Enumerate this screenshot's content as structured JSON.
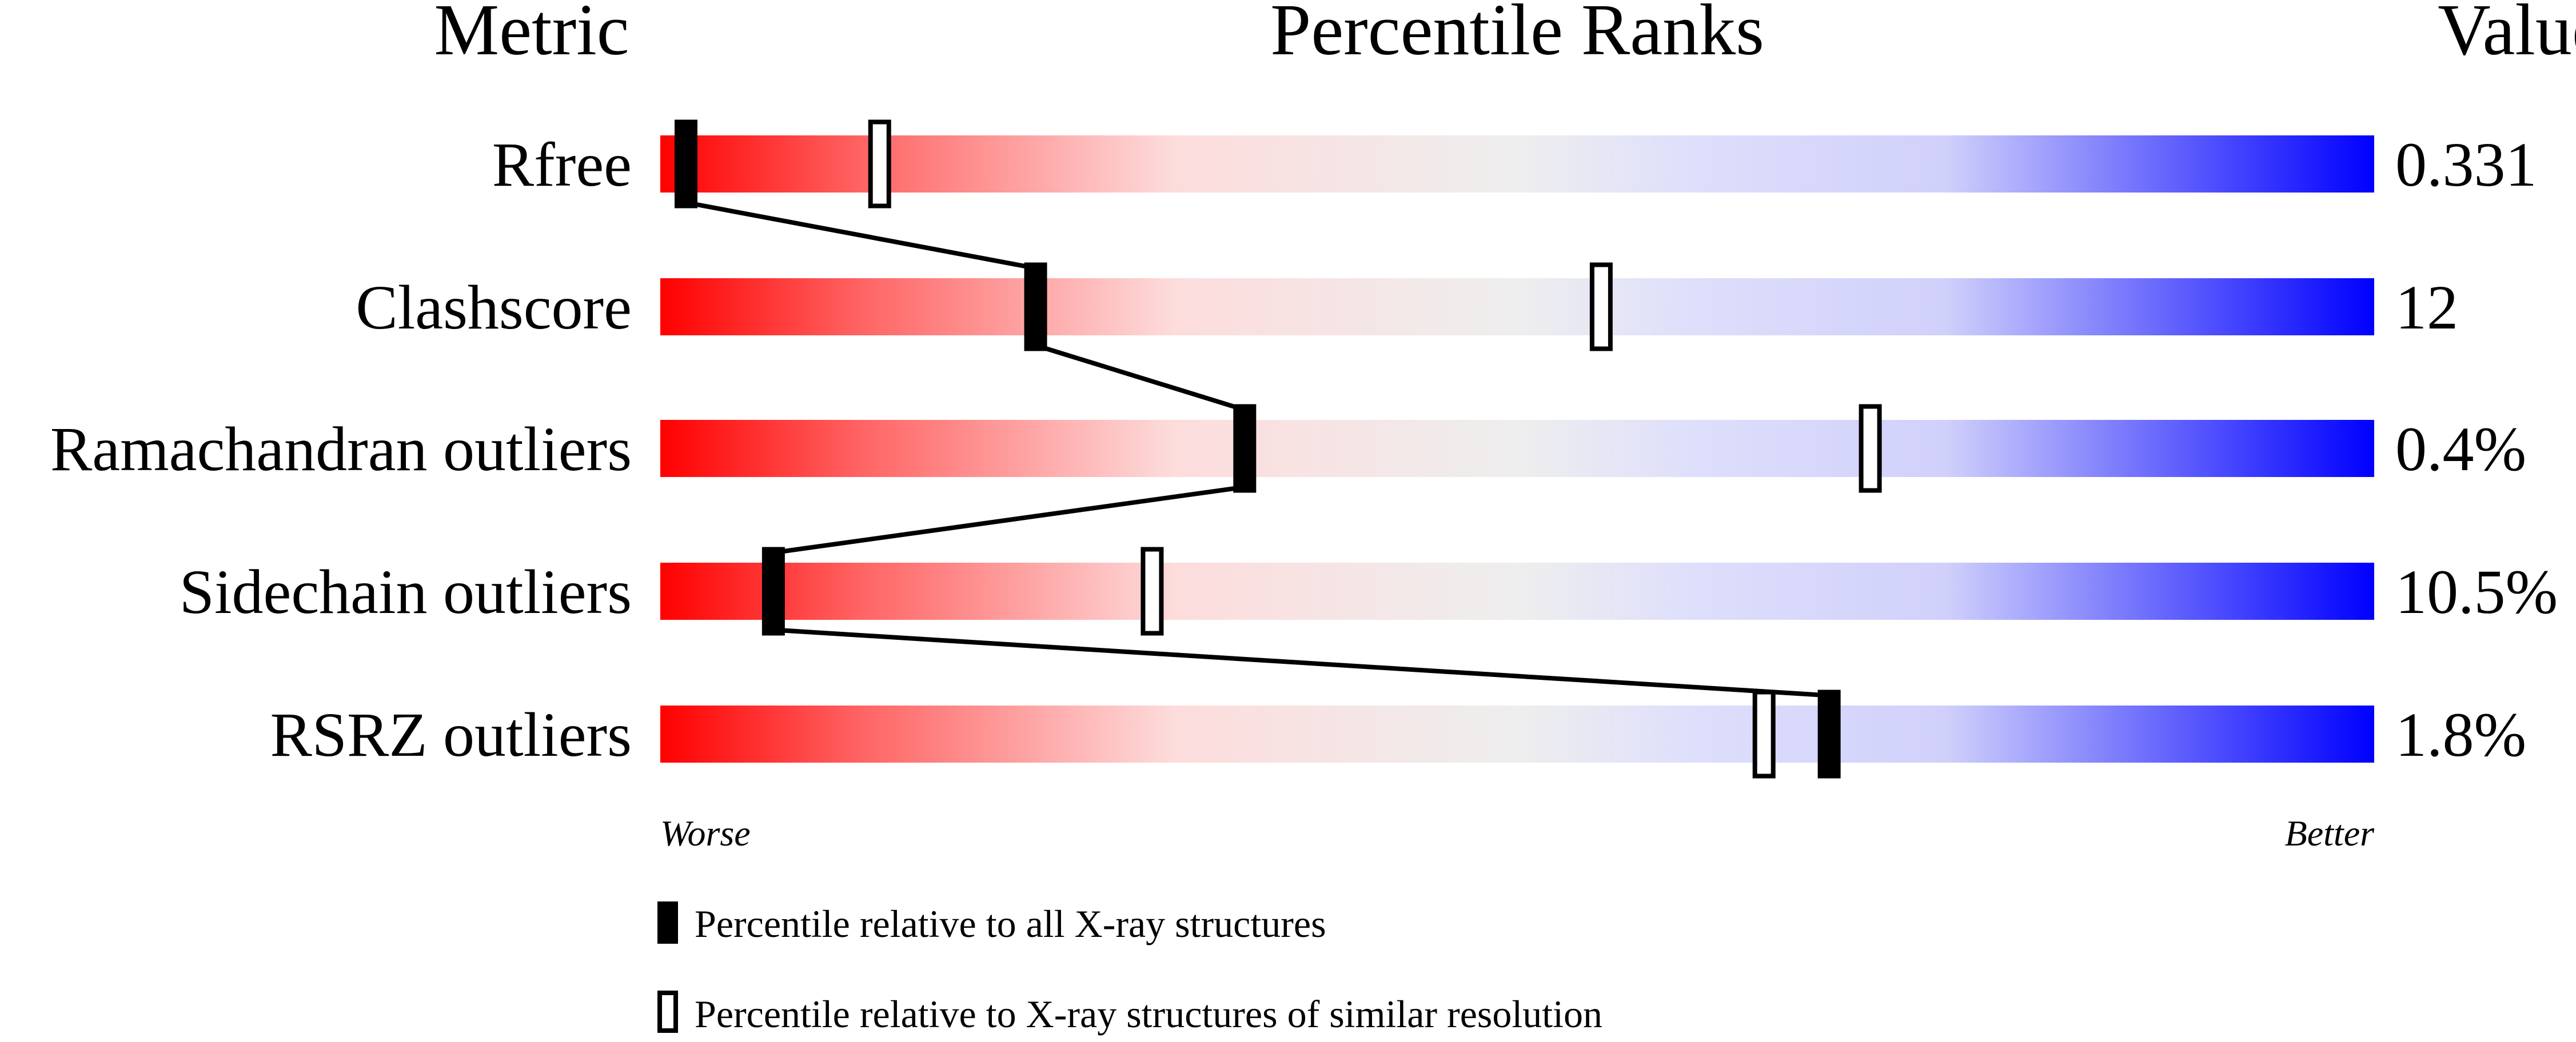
{
  "chart_data": {
    "type": "bar",
    "headers": {
      "metric": "Metric",
      "ranks": "Percentile Ranks",
      "value": "Value"
    },
    "metrics": [
      {
        "label": "Rfree",
        "value": "0.331",
        "percentile_all": 1.5,
        "percentile_similar": 12.8
      },
      {
        "label": "Clashscore",
        "value": "12",
        "percentile_all": 21.9,
        "percentile_similar": 54.9
      },
      {
        "label": "Ramachandran outliers",
        "value": "0.4%",
        "percentile_all": 34.1,
        "percentile_similar": 70.6
      },
      {
        "label": "Sidechain outliers",
        "value": "10.5%",
        "percentile_all": 6.6,
        "percentile_similar": 28.7
      },
      {
        "label": "RSRZ outliers",
        "value": "1.8%",
        "percentile_all": 68.2,
        "percentile_similar": 64.4
      }
    ],
    "xlim": [
      0,
      100
    ],
    "axis_left_label": "Worse",
    "axis_right_label": "Better",
    "legend": {
      "all": "Percentile relative to all X-ray structures",
      "similar": "Percentile relative to X-ray structures of similar resolution"
    },
    "colors": {
      "worse": "#ff0000",
      "middle": "#eeeeee",
      "better": "#0000ff",
      "marker": "#000000"
    }
  }
}
